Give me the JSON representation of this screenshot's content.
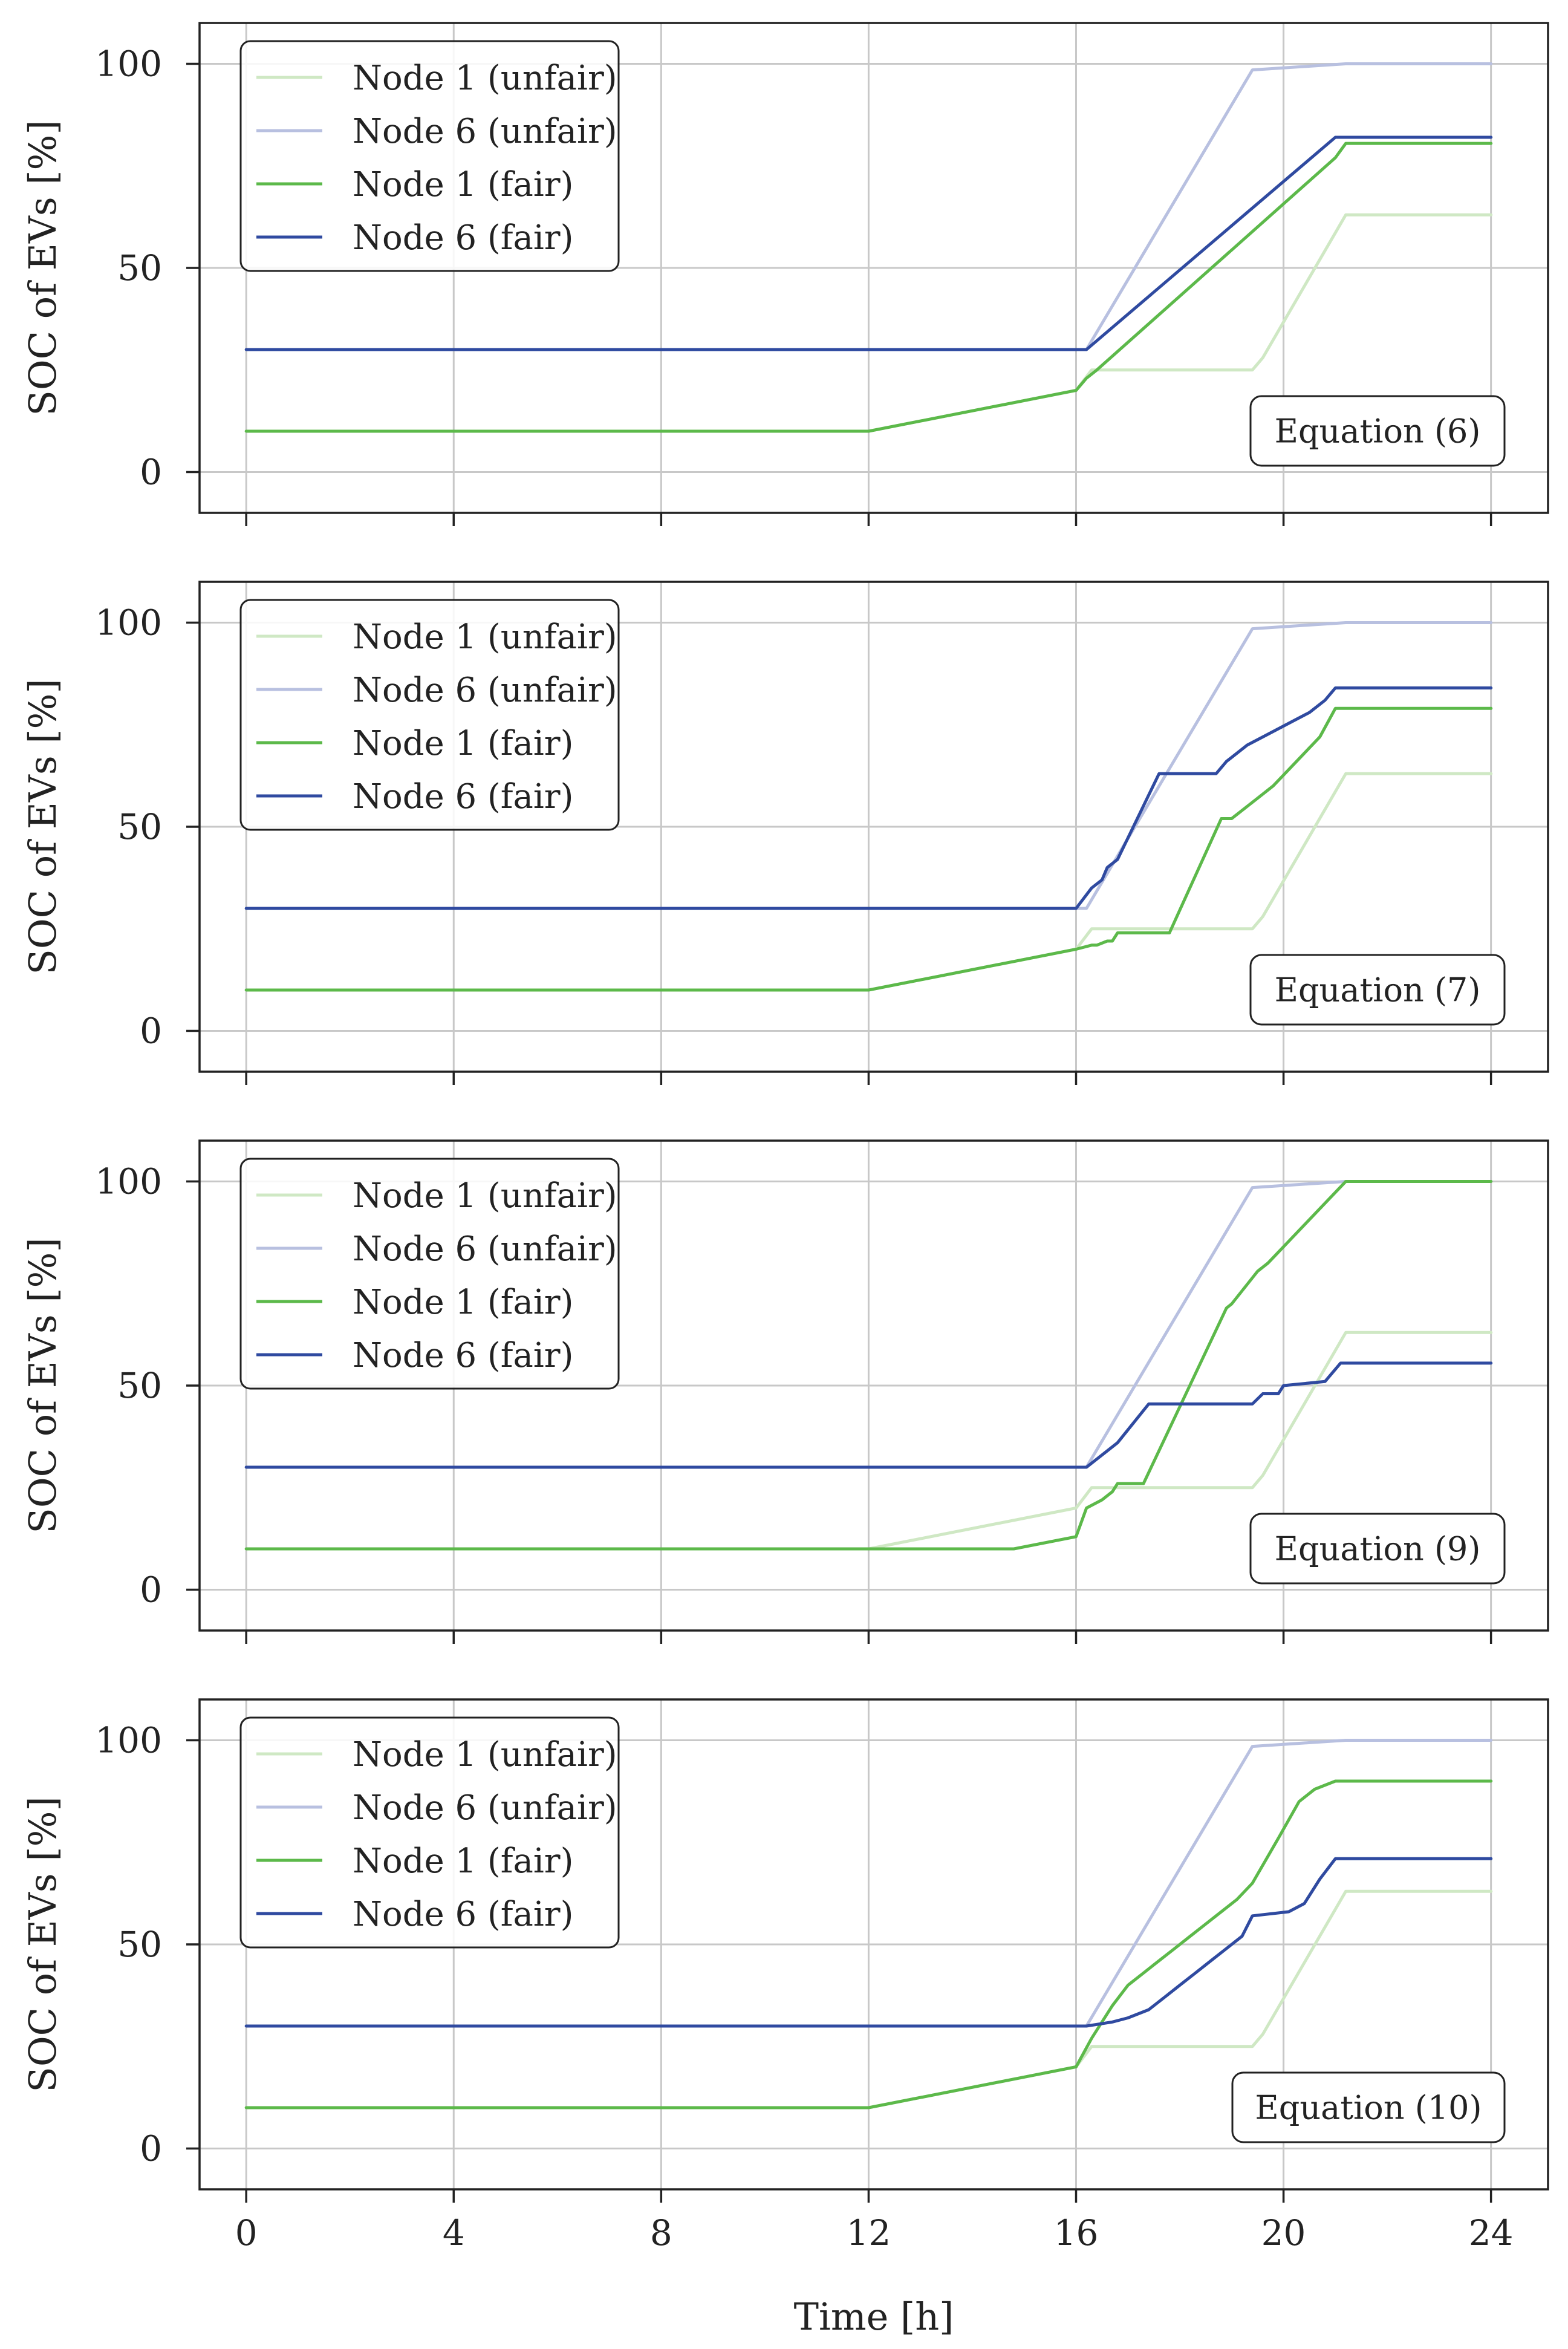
{
  "chart_data": [
    {
      "type": "line",
      "annotation": "Equation (6)",
      "xlabel": "",
      "ylabel": "SOC of EVs [%]",
      "xlim": [
        -0.9,
        25.1
      ],
      "ylim": [
        -10,
        110
      ],
      "xticks": [
        0,
        4,
        8,
        12,
        16,
        20,
        24
      ],
      "yticks": [
        0,
        50,
        100
      ],
      "xtick_labels_visible": false,
      "grid": true,
      "legend_position": "upper-left",
      "series": [
        {
          "name": "Node 1 (unfair)",
          "color": "#cfe8c4",
          "x": [
            0,
            12,
            16,
            16.3,
            19.4,
            19.6,
            21.2,
            24
          ],
          "y": [
            10,
            10,
            20,
            25,
            25,
            28,
            63,
            63
          ]
        },
        {
          "name": "Node 6 (unfair)",
          "color": "#b8c0e0",
          "x": [
            0,
            16.2,
            19.4,
            21.2,
            24
          ],
          "y": [
            30,
            30,
            98.5,
            100,
            100
          ]
        },
        {
          "name": "Node 1 (fair)",
          "color": "#5cb94a",
          "x": [
            0,
            12,
            16,
            16.2,
            16.4,
            21,
            21.2,
            24
          ],
          "y": [
            10,
            10,
            20,
            23,
            25,
            77,
            80.5,
            80.5
          ]
        },
        {
          "name": "Node 6 (fair)",
          "color": "#2f4aa0",
          "x": [
            0,
            16.2,
            21,
            24
          ],
          "y": [
            30,
            30,
            82,
            82
          ]
        }
      ]
    },
    {
      "type": "line",
      "annotation": "Equation (7)",
      "xlabel": "",
      "ylabel": "SOC of EVs [%]",
      "xlim": [
        -0.9,
        25.1
      ],
      "ylim": [
        -10,
        110
      ],
      "xticks": [
        0,
        4,
        8,
        12,
        16,
        20,
        24
      ],
      "yticks": [
        0,
        50,
        100
      ],
      "xtick_labels_visible": false,
      "grid": true,
      "legend_position": "upper-left",
      "series": [
        {
          "name": "Node 1 (unfair)",
          "color": "#cfe8c4",
          "x": [
            0,
            12,
            16,
            16.3,
            19.4,
            19.6,
            21.2,
            24
          ],
          "y": [
            10,
            10,
            20,
            25,
            25,
            28,
            63,
            63
          ]
        },
        {
          "name": "Node 6 (unfair)",
          "color": "#b8c0e0",
          "x": [
            0,
            16.2,
            19.4,
            21.2,
            24
          ],
          "y": [
            30,
            30,
            98.5,
            100,
            100
          ]
        },
        {
          "name": "Node 1 (fair)",
          "color": "#5cb94a",
          "x": [
            0,
            12,
            16,
            16.3,
            16.4,
            16.6,
            16.7,
            16.8,
            17.1,
            17.8,
            18.8,
            19.0,
            19.3,
            19.5,
            19.8,
            20.1,
            20.4,
            20.7,
            21.0,
            24
          ],
          "y": [
            10,
            10,
            20,
            21,
            21,
            22,
            22,
            24,
            24,
            24,
            52,
            52,
            55,
            57,
            60,
            64,
            68,
            72,
            79,
            79
          ]
        },
        {
          "name": "Node 6 (fair)",
          "color": "#2f4aa0",
          "x": [
            0,
            16.0,
            16.3,
            16.5,
            16.6,
            16.8,
            17.6,
            17.8,
            18.7,
            18.9,
            19.1,
            19.3,
            19.6,
            19.9,
            20.2,
            20.5,
            20.8,
            21.0,
            24
          ],
          "y": [
            30,
            30,
            35,
            37,
            40,
            42,
            63,
            63,
            63,
            66,
            68,
            70,
            72,
            74,
            76,
            78,
            81,
            84,
            84
          ]
        }
      ]
    },
    {
      "type": "line",
      "annotation": "Equation (9)",
      "xlabel": "",
      "ylabel": "SOC of EVs [%]",
      "xlim": [
        -0.9,
        25.1
      ],
      "ylim": [
        -10,
        110
      ],
      "xticks": [
        0,
        4,
        8,
        12,
        16,
        20,
        24
      ],
      "yticks": [
        0,
        50,
        100
      ],
      "xtick_labels_visible": false,
      "grid": true,
      "legend_position": "upper-left",
      "series": [
        {
          "name": "Node 1 (unfair)",
          "color": "#cfe8c4",
          "x": [
            0,
            12,
            16,
            16.3,
            19.4,
            19.6,
            21.2,
            24
          ],
          "y": [
            10,
            10,
            20,
            25,
            25,
            28,
            63,
            63
          ]
        },
        {
          "name": "Node 6 (unfair)",
          "color": "#b8c0e0",
          "x": [
            0,
            16.2,
            19.4,
            21.2,
            24
          ],
          "y": [
            30,
            30,
            98.5,
            100,
            100
          ]
        },
        {
          "name": "Node 1 (fair)",
          "color": "#5cb94a",
          "x": [
            0,
            14.8,
            16.0,
            16.2,
            16.5,
            16.7,
            16.8,
            17.3,
            18.9,
            19.0,
            19.5,
            19.7,
            21.2,
            24
          ],
          "y": [
            10,
            10,
            13,
            20,
            22,
            24,
            26,
            26,
            69,
            70,
            78,
            80,
            100,
            100
          ]
        },
        {
          "name": "Node 6 (fair)",
          "color": "#2f4aa0",
          "x": [
            0,
            16.2,
            16.6,
            16.8,
            17.4,
            19.4,
            19.6,
            19.9,
            20.0,
            20.8,
            21.1,
            24
          ],
          "y": [
            30,
            30,
            34,
            36,
            45.5,
            45.5,
            48,
            48,
            50,
            51,
            55.5,
            55.5
          ]
        }
      ]
    },
    {
      "type": "line",
      "annotation": "Equation (10)",
      "xlabel": "Time [h]",
      "ylabel": "SOC of EVs [%]",
      "xlim": [
        -0.9,
        25.1
      ],
      "ylim": [
        -10,
        110
      ],
      "xticks": [
        0,
        4,
        8,
        12,
        16,
        20,
        24
      ],
      "yticks": [
        0,
        50,
        100
      ],
      "xtick_labels_visible": true,
      "grid": true,
      "legend_position": "upper-left",
      "series": [
        {
          "name": "Node 1 (unfair)",
          "color": "#cfe8c4",
          "x": [
            0,
            12,
            16,
            16.3,
            19.4,
            19.6,
            21.2,
            24
          ],
          "y": [
            10,
            10,
            20,
            25,
            25,
            28,
            63,
            63
          ]
        },
        {
          "name": "Node 6 (unfair)",
          "color": "#b8c0e0",
          "x": [
            0,
            16.2,
            19.4,
            21.2,
            24
          ],
          "y": [
            30,
            30,
            98.5,
            100,
            100
          ]
        },
        {
          "name": "Node 1 (fair)",
          "color": "#5cb94a",
          "x": [
            0,
            12,
            16,
            16.3,
            16.7,
            17.0,
            17.3,
            17.6,
            17.9,
            18.2,
            18.5,
            18.8,
            19.1,
            19.4,
            19.9,
            20.3,
            20.6,
            21.0,
            24
          ],
          "y": [
            10,
            10,
            20,
            27,
            35,
            40,
            43,
            46,
            49,
            52,
            55,
            58,
            61,
            65,
            76,
            85,
            88,
            90,
            90
          ]
        },
        {
          "name": "Node 6 (fair)",
          "color": "#2f4aa0",
          "x": [
            0,
            16.2,
            16.7,
            17.0,
            17.4,
            17.7,
            18.0,
            18.3,
            18.6,
            18.9,
            19.2,
            19.4,
            20.1,
            20.4,
            20.7,
            21.0,
            24
          ],
          "y": [
            30,
            30,
            31,
            32,
            34,
            37,
            40,
            43,
            46,
            49,
            52,
            57,
            58,
            60,
            66,
            71,
            71
          ]
        }
      ]
    }
  ]
}
